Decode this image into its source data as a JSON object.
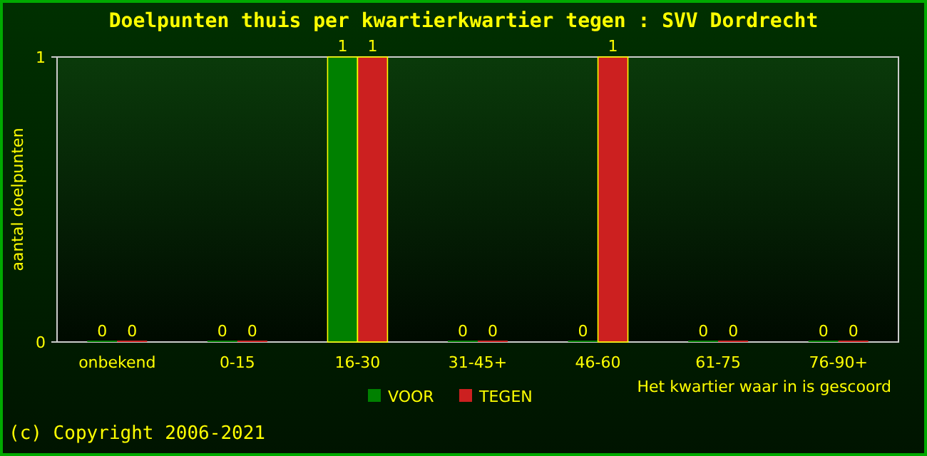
{
  "chart_data": {
    "type": "bar",
    "title": "Doelpunten thuis per kwartierkwartier tegen : SVV Dordrecht",
    "xlabel": "Het kwartier waar in is gescoord",
    "ylabel": "aantal doelpunten",
    "categories": [
      "onbekend",
      "0-15",
      "16-30",
      "31-45+",
      "46-60",
      "61-75",
      "76-90+"
    ],
    "series": [
      {
        "name": "VOOR",
        "color": "#008000",
        "values": [
          0,
          0,
          1,
          0,
          0,
          0,
          0
        ]
      },
      {
        "name": "TEGEN",
        "color": "#cc2020",
        "values": [
          0,
          0,
          1,
          0,
          1,
          0,
          0
        ]
      }
    ],
    "ylim": [
      0,
      1
    ],
    "yticks": [
      0,
      1
    ],
    "data_labels": true,
    "legend": "bottom",
    "grid": false,
    "annotations": [
      "(c) Copyright 2006-2021"
    ]
  }
}
